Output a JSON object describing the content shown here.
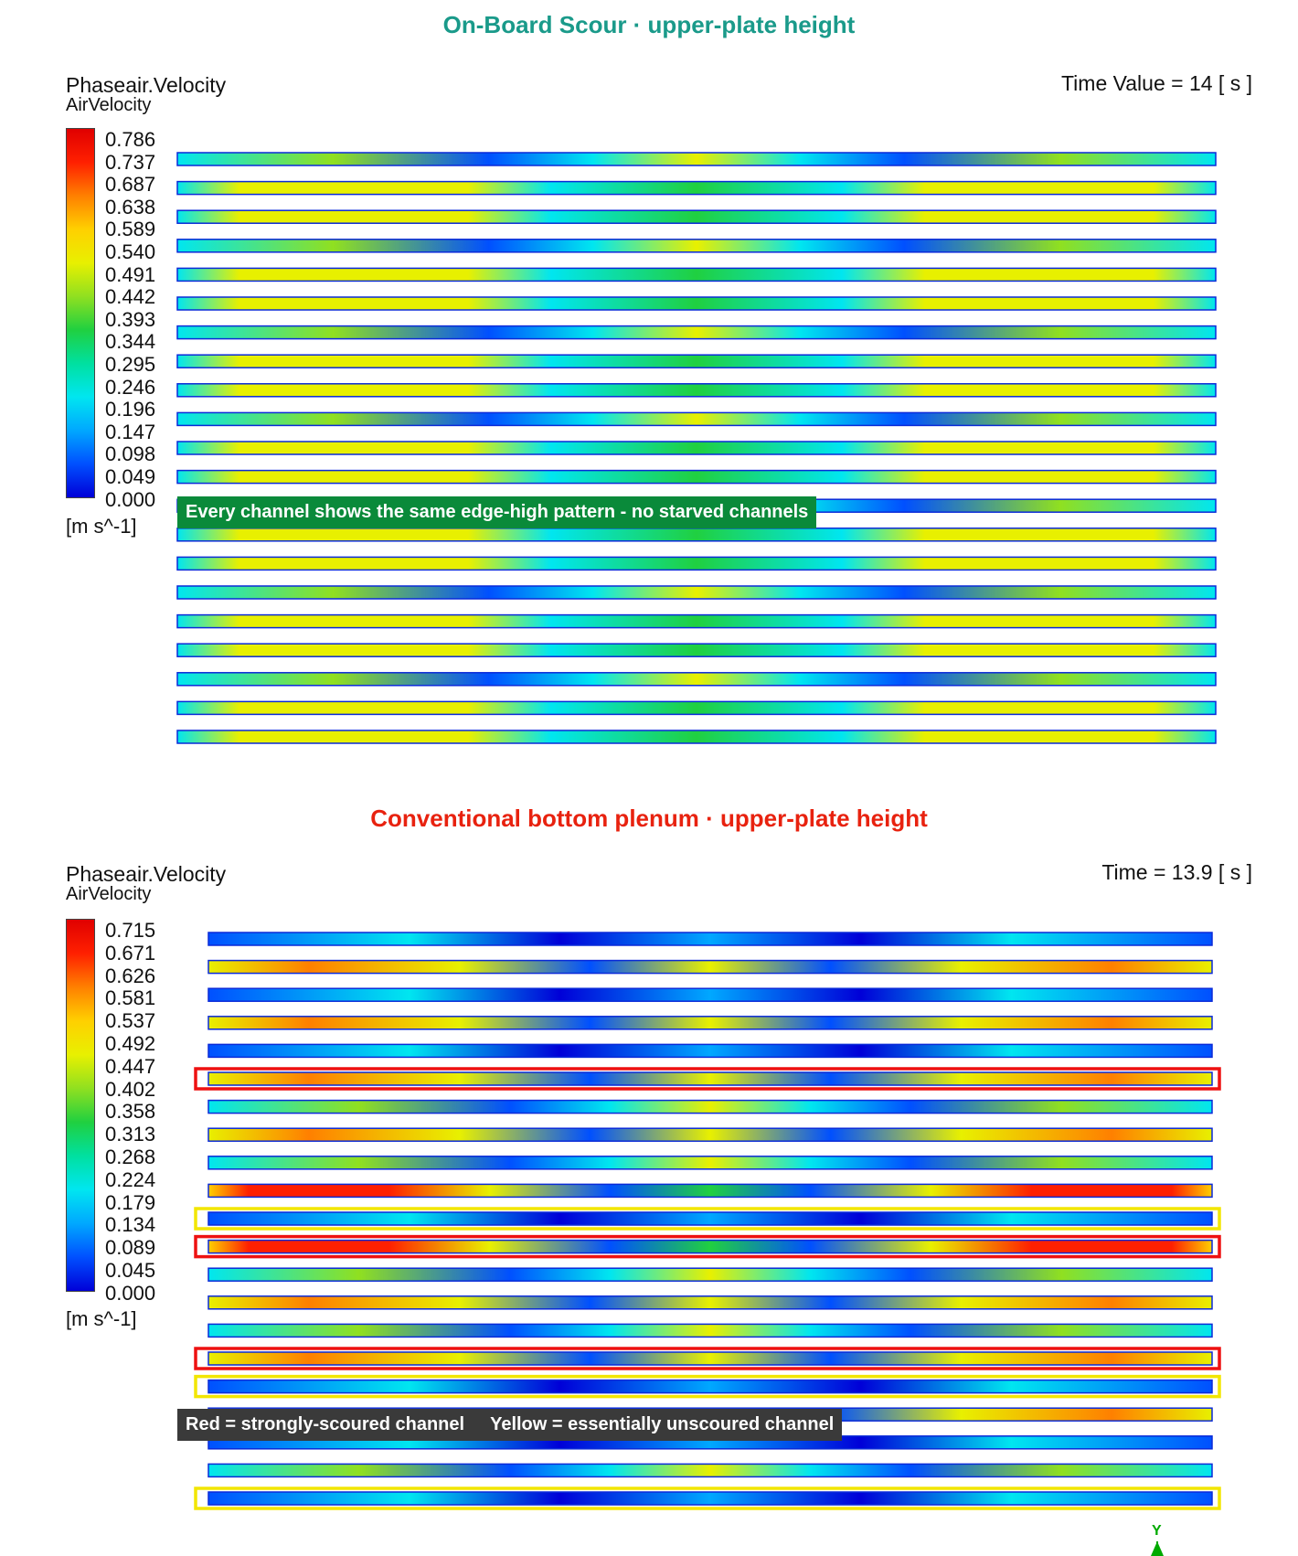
{
  "panels": [
    {
      "title": "On-Board Scour  ·  upper-plate height",
      "title_color": "#1a9a8a",
      "variable": "Phaseair.Velocity",
      "variable_sub": "AirVelocity",
      "time_label": "Time Value = 14 [ s ]",
      "legend_ticks": [
        "0.786",
        "0.737",
        "0.687",
        "0.638",
        "0.589",
        "0.540",
        "0.491",
        "0.442",
        "0.393",
        "0.344",
        "0.295",
        "0.246",
        "0.196",
        "0.147",
        "0.098",
        "0.049",
        "0.000"
      ],
      "unit": "[m s^-1]",
      "channel_count": 21,
      "channel_level_start": 0.6,
      "channel_level_end": 0.6,
      "highlight_red": [],
      "highlight_yellow": [],
      "note_color": "green",
      "note": [
        "Every channel shows the same edge-high pattern - no starved channels"
      ]
    },
    {
      "title": "Conventional bottom plenum  ·  upper-plate height",
      "title_color": "#e8220f",
      "variable": "Phaseair.Velocity",
      "variable_sub": "AirVelocity",
      "time_label": "Time = 13.9 [ s ]",
      "legend_ticks": [
        "0.715",
        "0.671",
        "0.626",
        "0.581",
        "0.537",
        "0.492",
        "0.447",
        "0.402",
        "0.358",
        "0.313",
        "0.268",
        "0.224",
        "0.179",
        "0.134",
        "0.089",
        "0.045",
        "0.000"
      ],
      "unit": "[m s^-1]",
      "channel_count": 21,
      "highlight_red": [
        5,
        11,
        15
      ],
      "highlight_yellow": [
        10,
        16,
        20
      ],
      "note_color": "dark",
      "note": [
        "Red = strongly-scoured channel",
        "Yellow = essentially unscoured channel"
      ]
    }
  ],
  "axis_label": "Y",
  "colors": {
    "jet": [
      "#0000d8",
      "#0050ff",
      "#00a8ff",
      "#00e6f0",
      "#00e0a0",
      "#20d040",
      "#90e020",
      "#e8f000",
      "#ffd000",
      "#ff8000",
      "#ff2000",
      "#e00000"
    ]
  }
}
